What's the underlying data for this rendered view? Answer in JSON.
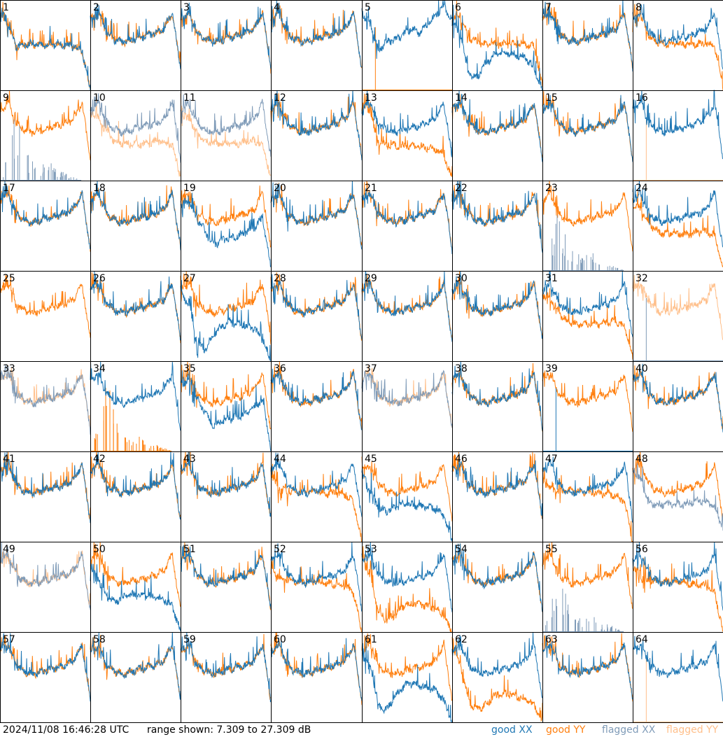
{
  "footer": {
    "timestamp": "2024/11/08 16:46:28 UTC",
    "range_text": "range shown: 7.309 to 27.309 dB"
  },
  "chart_data": {
    "type": "line",
    "title": "",
    "ylim": [
      7.309,
      27.309
    ],
    "yunit": "dB",
    "grid": "8x8 small multiples",
    "legend": [
      {
        "label": "good XX",
        "color": "#1f77b4"
      },
      {
        "label": "good YY",
        "color": "#ff7f0e"
      },
      {
        "label": "flagged XX",
        "color": "#7f9bb8"
      },
      {
        "label": "flagged YY",
        "color": "#ffbf8a"
      }
    ],
    "legend_placement": "bottom-right",
    "profile_x": "12 evenly spaced points across normalized channel range 0-1",
    "profiles": {
      "N": [
        23,
        24.5,
        20,
        18.5,
        18,
        18.5,
        19,
        19.5,
        20,
        21,
        24.5,
        12
      ],
      "L1": [
        24,
        22,
        17,
        17.5,
        17.5,
        17.5,
        17.5,
        17.5,
        17.3,
        17,
        16,
        7.3
      ],
      "W": [
        24,
        22,
        16,
        18,
        18.5,
        19.5,
        21,
        20,
        22,
        24,
        26,
        23
      ],
      "D": [
        22,
        20,
        11,
        10,
        13,
        15,
        16,
        15.5,
        15,
        14.5,
        12,
        7.3
      ],
      "R": [
        23,
        24,
        19,
        18,
        17.5,
        17.5,
        17.5,
        17.5,
        17.5,
        17.5,
        17,
        8
      ],
      "Y13": [
        24,
        23,
        16,
        15,
        15,
        15,
        15,
        14.8,
        14.5,
        14.3,
        13,
        7.3
      ],
      "Lo": [
        22,
        23,
        19,
        16,
        13,
        14,
        14.5,
        15,
        16,
        17,
        19,
        8
      ],
      "Lo2": [
        22,
        21,
        18,
        16,
        15.5,
        15.5,
        15.5,
        15.5,
        16,
        16,
        15,
        8
      ],
      "Y53": [
        24,
        20,
        12,
        10,
        11,
        13,
        13.5,
        13.5,
        13,
        12.5,
        11,
        7.3
      ],
      "Y44": [
        22,
        19,
        18.5,
        18.5,
        18.5,
        18.5,
        18.3,
        18,
        18,
        17.5,
        16,
        7.3
      ],
      "X45": [
        22,
        19,
        15,
        14,
        15,
        15.5,
        15.5,
        15,
        15,
        14.5,
        13,
        7.3
      ],
      "X48": [
        23,
        21,
        16,
        15.5,
        15.5,
        15.5,
        15.5,
        16,
        16.5,
        16,
        15,
        10
      ],
      "SP": [
        7.3,
        14,
        22,
        13,
        11,
        10,
        12,
        9,
        9,
        8,
        7.5,
        7.3
      ],
      "FL": [
        7.3,
        7.3,
        7.3,
        7.3,
        7.3,
        7.3,
        7.3,
        7.3,
        7.3,
        7.3,
        7.3,
        7.3
      ]
    },
    "panels": [
      {
        "id": "1",
        "xx": [
          "good",
          "L1"
        ],
        "yy": [
          "good",
          "L1"
        ]
      },
      {
        "id": "2",
        "xx": [
          "good",
          "N"
        ],
        "yy": [
          "good",
          "N"
        ]
      },
      {
        "id": "3",
        "xx": [
          "good",
          "N"
        ],
        "yy": [
          "good",
          "N"
        ]
      },
      {
        "id": "4",
        "xx": [
          "good",
          "N"
        ],
        "yy": [
          "good",
          "N"
        ]
      },
      {
        "id": "5",
        "xx": [
          "good",
          "W"
        ],
        "yy": [
          "good",
          "FL"
        ]
      },
      {
        "id": "6",
        "xx": [
          "good",
          "D"
        ],
        "yy": [
          "good",
          "R"
        ]
      },
      {
        "id": "7",
        "xx": [
          "good",
          "N"
        ],
        "yy": [
          "good",
          "N"
        ]
      },
      {
        "id": "8",
        "xx": [
          "good",
          "N"
        ],
        "yy": [
          "good",
          "R"
        ]
      },
      {
        "id": "9",
        "xx": [
          "flagged",
          "SP"
        ],
        "yy": [
          "good",
          "N"
        ]
      },
      {
        "id": "10",
        "xx": [
          "flagged",
          "N"
        ],
        "yy": [
          "flagged",
          "Lo2"
        ]
      },
      {
        "id": "11",
        "xx": [
          "flagged",
          "N"
        ],
        "yy": [
          "flagged",
          "Lo2"
        ]
      },
      {
        "id": "12",
        "xx": [
          "good",
          "N"
        ],
        "yy": [
          "good",
          "N"
        ]
      },
      {
        "id": "13",
        "xx": [
          "good",
          "N"
        ],
        "yy": [
          "good",
          "Y13"
        ]
      },
      {
        "id": "14",
        "xx": [
          "good",
          "N"
        ],
        "yy": [
          "good",
          "N"
        ]
      },
      {
        "id": "15",
        "xx": [
          "good",
          "N"
        ],
        "yy": [
          "good",
          "N"
        ]
      },
      {
        "id": "16",
        "xx": [
          "good",
          "N"
        ],
        "yy": [
          "flagged",
          "FL"
        ]
      },
      {
        "id": "17",
        "xx": [
          "good",
          "N"
        ],
        "yy": [
          "good",
          "N"
        ]
      },
      {
        "id": "18",
        "xx": [
          "good",
          "N"
        ],
        "yy": [
          "good",
          "N"
        ]
      },
      {
        "id": "19",
        "xx": [
          "good",
          "Lo"
        ],
        "yy": [
          "good",
          "N"
        ]
      },
      {
        "id": "20",
        "xx": [
          "good",
          "N"
        ],
        "yy": [
          "good",
          "N"
        ]
      },
      {
        "id": "21",
        "xx": [
          "good",
          "N"
        ],
        "yy": [
          "good",
          "N"
        ]
      },
      {
        "id": "22",
        "xx": [
          "good",
          "N"
        ],
        "yy": [
          "good",
          "N"
        ]
      },
      {
        "id": "23",
        "xx": [
          "flagged",
          "SP"
        ],
        "yy": [
          "good",
          "N"
        ]
      },
      {
        "id": "24",
        "xx": [
          "good",
          "N"
        ],
        "yy": [
          "good",
          "Lo2"
        ]
      },
      {
        "id": "25",
        "xx": [
          "none",
          "N"
        ],
        "yy": [
          "good",
          "N"
        ]
      },
      {
        "id": "26",
        "xx": [
          "good",
          "N"
        ],
        "yy": [
          "good",
          "N"
        ]
      },
      {
        "id": "27",
        "xx": [
          "good",
          "D"
        ],
        "yy": [
          "good",
          "N"
        ]
      },
      {
        "id": "28",
        "xx": [
          "good",
          "N"
        ],
        "yy": [
          "good",
          "N"
        ]
      },
      {
        "id": "29",
        "xx": [
          "good",
          "N"
        ],
        "yy": [
          "good",
          "N"
        ]
      },
      {
        "id": "30",
        "xx": [
          "good",
          "N"
        ],
        "yy": [
          "good",
          "N"
        ]
      },
      {
        "id": "31",
        "xx": [
          "good",
          "N"
        ],
        "yy": [
          "good",
          "Lo2"
        ]
      },
      {
        "id": "32",
        "xx": [
          "flagged",
          "FL"
        ],
        "yy": [
          "flagged",
          "N"
        ]
      },
      {
        "id": "33",
        "xx": [
          "flagged",
          "N"
        ],
        "yy": [
          "flagged",
          "N"
        ]
      },
      {
        "id": "34",
        "xx": [
          "good",
          "N"
        ],
        "yy": [
          "good",
          "SP"
        ]
      },
      {
        "id": "35",
        "xx": [
          "good",
          "Lo"
        ],
        "yy": [
          "good",
          "N"
        ]
      },
      {
        "id": "36",
        "xx": [
          "good",
          "N"
        ],
        "yy": [
          "good",
          "N"
        ]
      },
      {
        "id": "37",
        "xx": [
          "flagged",
          "N"
        ],
        "yy": [
          "flagged",
          "N"
        ]
      },
      {
        "id": "38",
        "xx": [
          "good",
          "N"
        ],
        "yy": [
          "good",
          "N"
        ]
      },
      {
        "id": "39",
        "xx": [
          "good",
          "FL"
        ],
        "yy": [
          "good",
          "N"
        ]
      },
      {
        "id": "40",
        "xx": [
          "good",
          "N"
        ],
        "yy": [
          "good",
          "N"
        ]
      },
      {
        "id": "41",
        "xx": [
          "good",
          "N"
        ],
        "yy": [
          "good",
          "N"
        ]
      },
      {
        "id": "42",
        "xx": [
          "good",
          "N"
        ],
        "yy": [
          "good",
          "N"
        ]
      },
      {
        "id": "43",
        "xx": [
          "good",
          "N"
        ],
        "yy": [
          "good",
          "N"
        ]
      },
      {
        "id": "44",
        "xx": [
          "good",
          "N"
        ],
        "yy": [
          "good",
          "Y44"
        ]
      },
      {
        "id": "45",
        "xx": [
          "good",
          "X45"
        ],
        "yy": [
          "good",
          "N"
        ]
      },
      {
        "id": "46",
        "xx": [
          "good",
          "N"
        ],
        "yy": [
          "good",
          "N"
        ]
      },
      {
        "id": "47",
        "xx": [
          "good",
          "N"
        ],
        "yy": [
          "good",
          "Y44"
        ]
      },
      {
        "id": "48",
        "xx": [
          "flagged",
          "X48"
        ],
        "yy": [
          "good",
          "N"
        ]
      },
      {
        "id": "49",
        "xx": [
          "flagged",
          "N"
        ],
        "yy": [
          "flagged",
          "N"
        ]
      },
      {
        "id": "50",
        "xx": [
          "good",
          "X45"
        ],
        "yy": [
          "good",
          "N"
        ]
      },
      {
        "id": "51",
        "xx": [
          "good",
          "N"
        ],
        "yy": [
          "good",
          "N"
        ]
      },
      {
        "id": "52",
        "xx": [
          "good",
          "N"
        ],
        "yy": [
          "good",
          "Y44"
        ]
      },
      {
        "id": "53",
        "xx": [
          "good",
          "N"
        ],
        "yy": [
          "good",
          "Y53"
        ]
      },
      {
        "id": "54",
        "xx": [
          "good",
          "N"
        ],
        "yy": [
          "good",
          "N"
        ]
      },
      {
        "id": "55",
        "xx": [
          "flagged",
          "SP"
        ],
        "yy": [
          "good",
          "N"
        ]
      },
      {
        "id": "56",
        "xx": [
          "good",
          "N"
        ],
        "yy": [
          "good",
          "Y44"
        ]
      },
      {
        "id": "57",
        "xx": [
          "good",
          "N"
        ],
        "yy": [
          "good",
          "N"
        ]
      },
      {
        "id": "58",
        "xx": [
          "good",
          "N"
        ],
        "yy": [
          "good",
          "N"
        ]
      },
      {
        "id": "59",
        "xx": [
          "good",
          "N"
        ],
        "yy": [
          "good",
          "N"
        ]
      },
      {
        "id": "60",
        "xx": [
          "good",
          "N"
        ],
        "yy": [
          "good",
          "N"
        ]
      },
      {
        "id": "61",
        "xx": [
          "good",
          "D"
        ],
        "yy": [
          "good",
          "N"
        ]
      },
      {
        "id": "62",
        "xx": [
          "good",
          "N"
        ],
        "yy": [
          "good",
          "Y53"
        ]
      },
      {
        "id": "63",
        "xx": [
          "good",
          "N"
        ],
        "yy": [
          "good",
          "N"
        ]
      },
      {
        "id": "64",
        "xx": [
          "good",
          "N"
        ],
        "yy": [
          "flagged",
          "FL"
        ]
      }
    ]
  }
}
